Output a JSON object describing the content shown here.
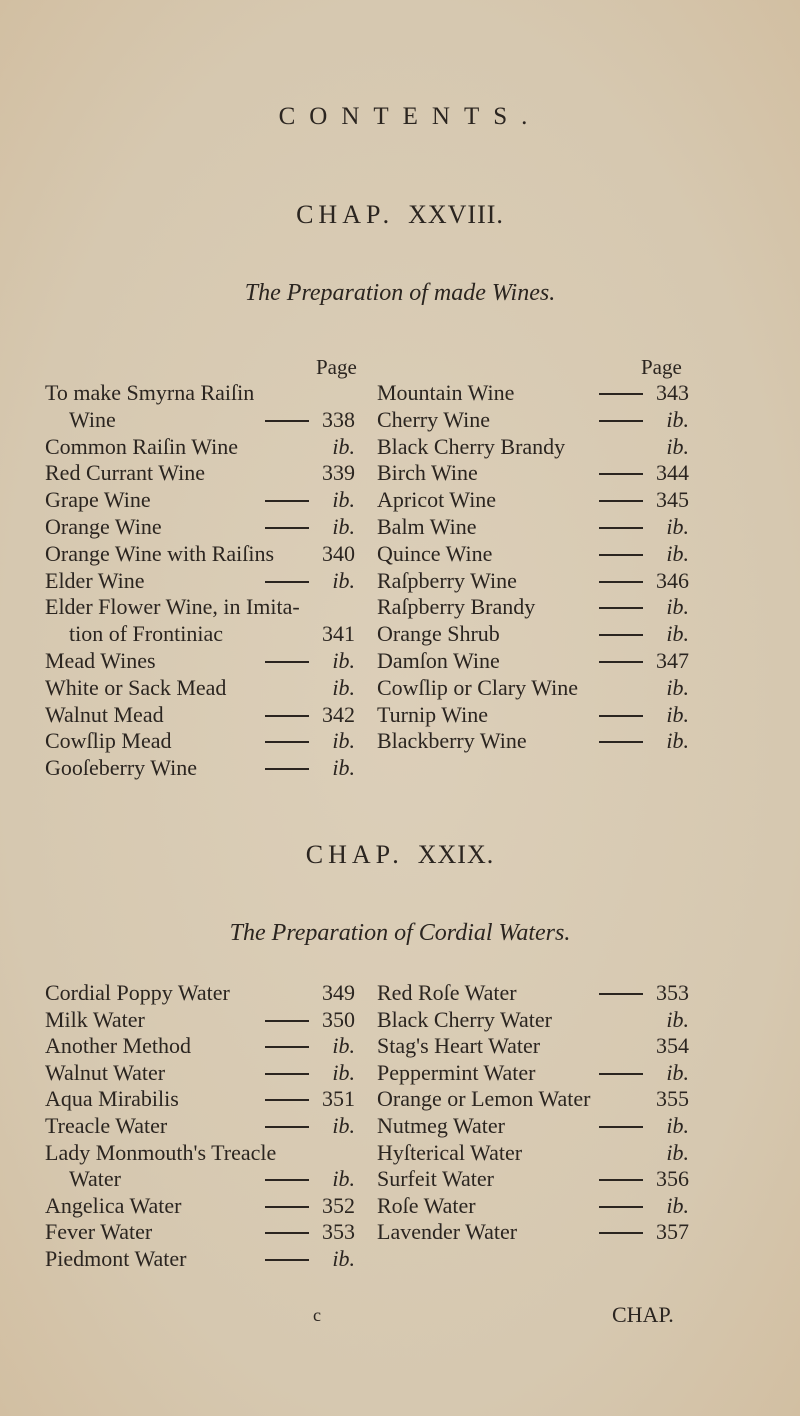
{
  "title": "CONTENTS.",
  "chapters": [
    {
      "chap_label": "CHAP.",
      "chap_num": "XXVIII.",
      "subtitle": "The Preparation of made Wines.",
      "page_header": "Page",
      "left": [
        {
          "text": "To make  Smyrna  Raiſin",
          "page": "",
          "dash": false
        },
        {
          "text": "Wine",
          "page": "338",
          "dash": true,
          "indent": true
        },
        {
          "text": "Common Raiſin Wine",
          "page": "ib.",
          "dash": false
        },
        {
          "text": "Red Currant Wine",
          "page": "339",
          "dash": false
        },
        {
          "text": "Grape Wine",
          "page": "ib.",
          "dash": true
        },
        {
          "text": "Orange Wine",
          "page": "ib.",
          "dash": true
        },
        {
          "text": "Orange Wine with Raiſins",
          "page": "340",
          "dash": false
        },
        {
          "text": "Elder Wine",
          "page": "ib.",
          "dash": true
        },
        {
          "text": "Elder Flower Wine, in Imita-",
          "page": "",
          "dash": false
        },
        {
          "text": "tion of Frontiniac",
          "page": "341",
          "dash": false,
          "indent": true
        },
        {
          "text": "Mead Wines",
          "page": "ib.",
          "dash": true
        },
        {
          "text": "White or Sack Mead",
          "page": "ib.",
          "dash": false
        },
        {
          "text": "Walnut Mead",
          "page": "342",
          "dash": true
        },
        {
          "text": "Cowſlip Mead",
          "page": "ib.",
          "dash": true
        },
        {
          "text": "Gooſeberry Wine",
          "page": "ib.",
          "dash": true
        }
      ],
      "right": [
        {
          "text": "Mountain Wine",
          "page": "343",
          "dash": true
        },
        {
          "text": "Cherry Wine",
          "page": "ib.",
          "dash": true
        },
        {
          "text": "Black Cherry Brandy",
          "page": "ib.",
          "dash": false
        },
        {
          "text": "Birch Wine",
          "page": "344",
          "dash": true
        },
        {
          "text": "Apricot Wine",
          "page": "345",
          "dash": true
        },
        {
          "text": "Balm Wine",
          "page": "ib.",
          "dash": true
        },
        {
          "text": "Quince Wine",
          "page": "ib.",
          "dash": true
        },
        {
          "text": "Raſpberry Wine",
          "page": "346",
          "dash": true
        },
        {
          "text": "Raſpberry Brandy",
          "page": "ib.",
          "dash": true
        },
        {
          "text": "Orange Shrub",
          "page": "ib.",
          "dash": true
        },
        {
          "text": "Damſon Wine",
          "page": "347",
          "dash": true
        },
        {
          "text": "Cowſlip or Clary Wine",
          "page": "ib.",
          "dash": false
        },
        {
          "text": "Turnip Wine",
          "page": "ib.",
          "dash": true
        },
        {
          "text": "Blackberry Wine",
          "page": "ib.",
          "dash": true
        }
      ]
    },
    {
      "chap_label": "CHAP.",
      "chap_num": "XXIX.",
      "subtitle": "The Preparation of Cordial Waters.",
      "left": [
        {
          "text": "Cordial  Poppy Water",
          "page": "349",
          "dash": false
        },
        {
          "text": "Milk Water",
          "page": "350",
          "dash": true
        },
        {
          "text": "Another Method",
          "page": "ib.",
          "dash": true
        },
        {
          "text": "Walnut Water",
          "page": "ib.",
          "dash": true
        },
        {
          "text": "Aqua Mirabilis",
          "page": "351",
          "dash": true
        },
        {
          "text": "Treacle Water",
          "page": "ib.",
          "dash": true
        },
        {
          "text": "Lady Monmouth's  Treacle",
          "page": "",
          "dash": false
        },
        {
          "text": "Water",
          "page": "ib.",
          "dash": true,
          "indent": true
        },
        {
          "text": "Angelica Water",
          "page": "352",
          "dash": true
        },
        {
          "text": "Fever Water",
          "page": "353",
          "dash": true
        },
        {
          "text": "Piedmont Water",
          "page": "ib.",
          "dash": true
        }
      ],
      "right": [
        {
          "text": "Red Roſe Water",
          "page": "353",
          "dash": true
        },
        {
          "text": "Black Cherry Water",
          "page": "ib.",
          "dash": false
        },
        {
          "text": "Stag's Heart Water",
          "page": "354",
          "dash": false
        },
        {
          "text": "Peppermint Water",
          "page": "ib.",
          "dash": true
        },
        {
          "text": "Orange or Lemon Water",
          "page": "355",
          "dash": false
        },
        {
          "text": "Nutmeg Water",
          "page": "ib.",
          "dash": true
        },
        {
          "text": "Hyſterical Water",
          "page": "ib.",
          "dash": false
        },
        {
          "text": "Surfeit Water",
          "page": "356",
          "dash": true
        },
        {
          "text": "Roſe Water",
          "page": "ib.",
          "dash": true
        },
        {
          "text": "Lavender Water",
          "page": "357",
          "dash": true
        }
      ]
    }
  ],
  "footer": {
    "signature": "c",
    "catchword": "CHAP."
  }
}
